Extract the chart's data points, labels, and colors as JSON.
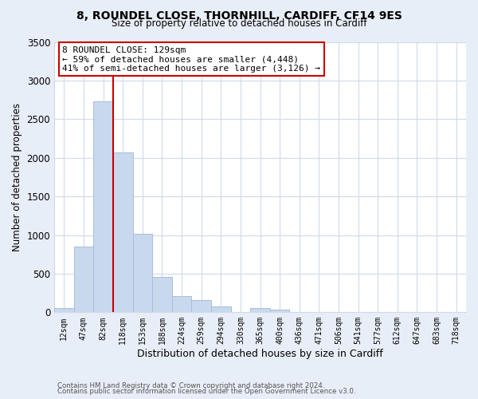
{
  "title1": "8, ROUNDEL CLOSE, THORNHILL, CARDIFF, CF14 9ES",
  "title2": "Size of property relative to detached houses in Cardiff",
  "xlabel": "Distribution of detached houses by size in Cardiff",
  "ylabel": "Number of detached properties",
  "bar_labels": [
    "12sqm",
    "47sqm",
    "82sqm",
    "118sqm",
    "153sqm",
    "188sqm",
    "224sqm",
    "259sqm",
    "294sqm",
    "330sqm",
    "365sqm",
    "400sqm",
    "436sqm",
    "471sqm",
    "506sqm",
    "541sqm",
    "577sqm",
    "612sqm",
    "647sqm",
    "683sqm",
    "718sqm"
  ],
  "bar_values": [
    50,
    850,
    2730,
    2070,
    1020,
    460,
    205,
    155,
    75,
    0,
    55,
    30,
    0,
    0,
    0,
    0,
    0,
    0,
    0,
    0,
    0
  ],
  "bar_color": "#c8d8ed",
  "bar_edge_color": "#a8bedc",
  "vline_color": "#cc0000",
  "ylim": [
    0,
    3500
  ],
  "yticks": [
    0,
    500,
    1000,
    1500,
    2000,
    2500,
    3000,
    3500
  ],
  "annotation_line1": "8 ROUNDEL CLOSE: 129sqm",
  "annotation_line2": "← 59% of detached houses are smaller (4,448)",
  "annotation_line3": "41% of semi-detached houses are larger (3,126) →",
  "footer1": "Contains HM Land Registry data © Crown copyright and database right 2024.",
  "footer2": "Contains public sector information licensed under the Open Government Licence v3.0.",
  "bg_color": "#e8eef7",
  "plot_bg_color": "#ffffff",
  "grid_color": "#d0daea"
}
